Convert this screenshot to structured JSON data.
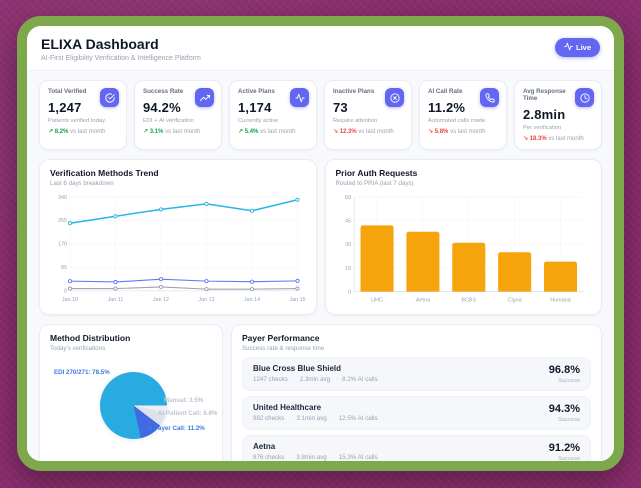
{
  "header": {
    "title": "ELIXA Dashboard",
    "subtitle": "AI-First Eligibility Verification & Intelligence Platform",
    "live_label": "Live"
  },
  "kpis": [
    {
      "title": "Total Verified",
      "value": "1,247",
      "subtitle": "Patients verified today",
      "trend": "8.2%",
      "trend_suffix": "vs last month",
      "direction": "up",
      "icon": "check-circle-icon"
    },
    {
      "title": "Success Rate",
      "value": "94.2%",
      "subtitle": "EDI + AI verification",
      "trend": "3.1%",
      "trend_suffix": "vs last month",
      "direction": "up",
      "icon": "trending-up-icon"
    },
    {
      "title": "Active Plans",
      "value": "1,174",
      "subtitle": "Currently active",
      "trend": "5.4%",
      "trend_suffix": "vs last month",
      "direction": "up",
      "icon": "activity-icon"
    },
    {
      "title": "Inactive Plans",
      "value": "73",
      "subtitle": "Require attention",
      "trend": "12.3%",
      "trend_suffix": "vs last month",
      "direction": "down",
      "icon": "x-circle-icon"
    },
    {
      "title": "AI Call Rate",
      "value": "11.2%",
      "subtitle": "Automated calls made",
      "trend": "5.8%",
      "trend_suffix": "vs last month",
      "direction": "down",
      "icon": "phone-icon"
    },
    {
      "title": "Avg Response Time",
      "value": "2.8min",
      "subtitle": "Per verification",
      "trend": "18.3%",
      "trend_suffix": "vs last month",
      "direction": "down",
      "icon": "clock-icon"
    }
  ],
  "payer_performance": {
    "title": "Payer Performance",
    "subtitle": "Success rate & response time",
    "success_label": "Success",
    "rows": [
      {
        "name": "Blue Cross Blue Shield",
        "meta": [
          "1247 checks",
          "2.3min avg",
          "8.2% AI calls"
        ],
        "success": "96.8%"
      },
      {
        "name": "United Healthcare",
        "meta": [
          "982 checks",
          "3.1min avg",
          "12.5% AI calls"
        ],
        "success": "94.3%"
      },
      {
        "name": "Aetna",
        "meta": [
          "876 checks",
          "3.8min avg",
          "15.3% AI calls"
        ],
        "success": "91.2%"
      }
    ]
  },
  "colors": {
    "accent_indigo": "#6366f1",
    "trend_up_green": "#16a34a",
    "trend_down_red": "#ef4444",
    "frame_green": "#7da84b",
    "background_purple": "#8c2d6f",
    "bar_orange": "#f5a40b",
    "line_cyan": "#29b5e8",
    "line_blue": "#5b7cfa",
    "line_gray": "#9aa5b1"
  },
  "chart_data": [
    {
      "type": "line",
      "title": "Verification Methods Trend",
      "subtitle": "Last 6 days breakdown",
      "x": [
        "Jan 10",
        "Jan 11",
        "Jan 12",
        "Jan 13",
        "Jan 14",
        "Jan 15"
      ],
      "series": [
        {
          "name": "series_1",
          "color": "#29b5e8",
          "values": [
            245,
            270,
            295,
            315,
            290,
            330
          ]
        },
        {
          "name": "series_2",
          "color": "#5b7cfa",
          "values": [
            35,
            32,
            42,
            35,
            33,
            36
          ]
        },
        {
          "name": "series_3",
          "color": "#9aa5b1",
          "values": [
            8,
            8,
            14,
            6,
            6,
            8
          ]
        }
      ],
      "ylim": [
        0,
        340
      ],
      "yticks": [
        0,
        85,
        170,
        255,
        340
      ],
      "grid": true,
      "legend": "none"
    },
    {
      "type": "bar",
      "title": "Prior Auth Requests",
      "subtitle": "Routed to PRIA (last 7 days)",
      "categories": [
        "UHC",
        "Aetna",
        "BCBS",
        "Cigna",
        "Humana"
      ],
      "values": [
        42,
        38,
        31,
        25,
        19
      ],
      "color": "#f5a40b",
      "ylim": [
        0,
        60
      ],
      "yticks": [
        0,
        15,
        30,
        45,
        60
      ],
      "grid": true,
      "legend": "none"
    },
    {
      "type": "pie",
      "title": "Method Distribution",
      "subtitle": "Today's verifications",
      "slices": [
        {
          "label": "EDI 270/271",
          "pct": 78.5,
          "color": "#29abe2",
          "label_color": "#3d7be0"
        },
        {
          "label": "Manual",
          "pct": 3.5,
          "color": "#eceff4",
          "label_color": "#bcc5d0"
        },
        {
          "label": "AI Patient Call",
          "pct": 6.8,
          "color": "#dde3ec",
          "label_color": "#bcc5d0"
        },
        {
          "label": "AI Payer Call",
          "pct": 11.2,
          "color": "#4169e1",
          "label_color": "#3d7be0"
        }
      ],
      "legend": "labels-around-pie"
    }
  ]
}
